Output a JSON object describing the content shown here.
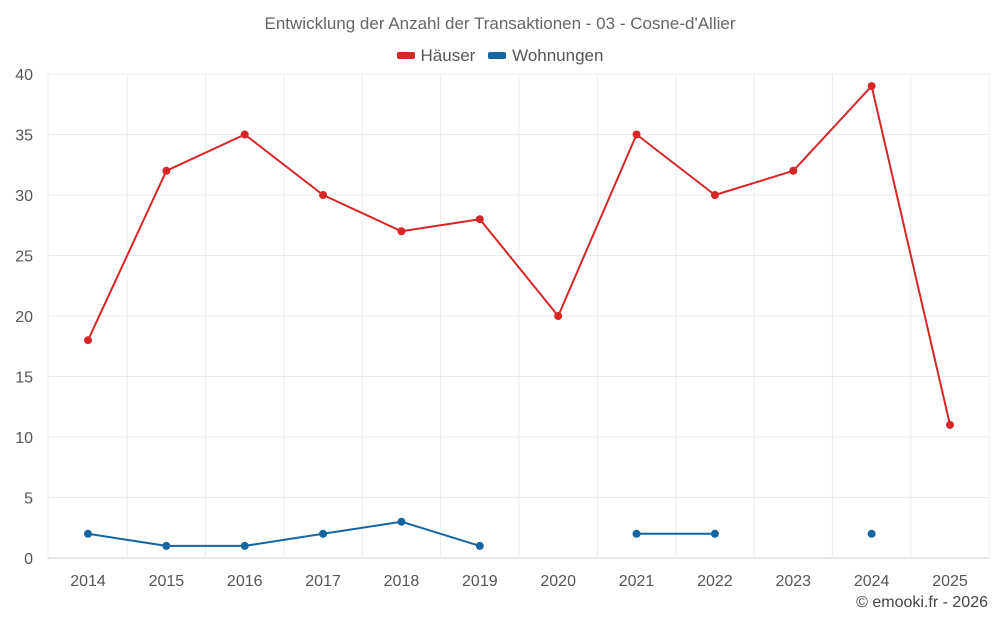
{
  "chart_data": {
    "type": "line",
    "title": "Entwicklung der Anzahl der Transaktionen - 03 - Cosne-d'Allier",
    "categories": [
      "2014",
      "2015",
      "2016",
      "2017",
      "2018",
      "2019",
      "2020",
      "2021",
      "2022",
      "2023",
      "2024",
      "2025"
    ],
    "series": [
      {
        "name": "Häuser",
        "color": "#d62728",
        "values": [
          18,
          32,
          35,
          30,
          27,
          28,
          20,
          35,
          30,
          32,
          39,
          11
        ]
      },
      {
        "name": "Wohnungen",
        "color": "#1565a0",
        "values": [
          2,
          1,
          1,
          2,
          3,
          1,
          null,
          2,
          2,
          null,
          2,
          null
        ]
      }
    ],
    "ylim": [
      0,
      40
    ],
    "yticks": [
      0,
      5,
      10,
      15,
      20,
      25,
      30,
      35,
      40
    ],
    "legend_position": "top-center",
    "grid": true
  },
  "credit": "© emooki.fr - 2026"
}
